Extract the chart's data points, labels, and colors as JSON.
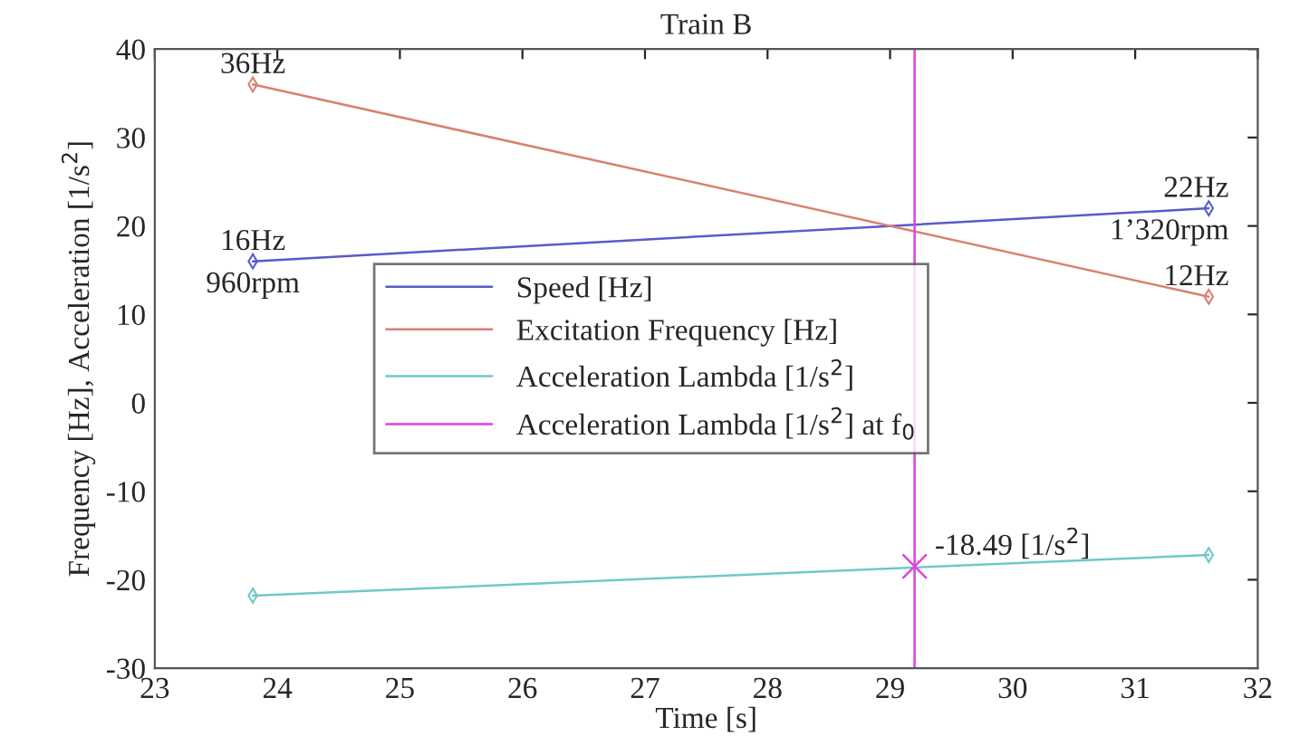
{
  "chart_data": {
    "type": "line",
    "title": "Train B",
    "xlabel": "Time [s]",
    "ylabel": "Frequency [Hz], Acceleration [1/s$^{2}$]",
    "xlim": [
      23,
      32
    ],
    "xticks": [
      23,
      24,
      25,
      26,
      27,
      28,
      29,
      30,
      31,
      32
    ],
    "ylim": [
      -30,
      40
    ],
    "yticks": [
      -30,
      -20,
      -10,
      0,
      10,
      20,
      30,
      40
    ],
    "grid": false,
    "legend": "center",
    "marker": "diamond",
    "line_style": "solid",
    "series": [
      {
        "name": "Speed [Hz]",
        "color": "#5a5ac8",
        "x": [
          23.8,
          31.6
        ],
        "values": [
          16,
          22
        ]
      },
      {
        "name": "Excitation Frequency [Hz]",
        "color": "#d98070",
        "x": [
          23.8,
          31.6
        ],
        "values": [
          36,
          12
        ]
      },
      {
        "name": "Acceleration Lambda [1/s$^{2}$]",
        "color": "#70c8c8",
        "x": [
          23.8,
          31.6
        ],
        "values": [
          -21.8,
          -17.2
        ]
      },
      {
        "name": "Acceleration Lambda [1/s$^{2}$] at f$_{0}$",
        "type": "scatter",
        "marker": "cross",
        "color": "#e040e0",
        "x": [
          29.2
        ],
        "values": [
          -18.49
        ]
      }
    ],
    "ref_lines": [
      {
        "axis": "x",
        "value": 29.2,
        "color": "#e040e0"
      }
    ],
    "annotations": [
      {
        "text": "36Hz",
        "x": 23.8,
        "y": 36
      },
      {
        "text": "16Hz",
        "x": 23.8,
        "y": 16
      },
      {
        "text": "960rpm",
        "x": 23.8,
        "y": 16
      },
      {
        "text": "22Hz",
        "x": 31.6,
        "y": 22
      },
      {
        "text": "1’320rpm",
        "x": 31.6,
        "y": 22
      },
      {
        "text": "12Hz",
        "x": 31.6,
        "y": 12
      },
      {
        "text": "-18.49 [1/s$^{2}$]",
        "x": 29.2,
        "y": -18.49
      }
    ]
  }
}
